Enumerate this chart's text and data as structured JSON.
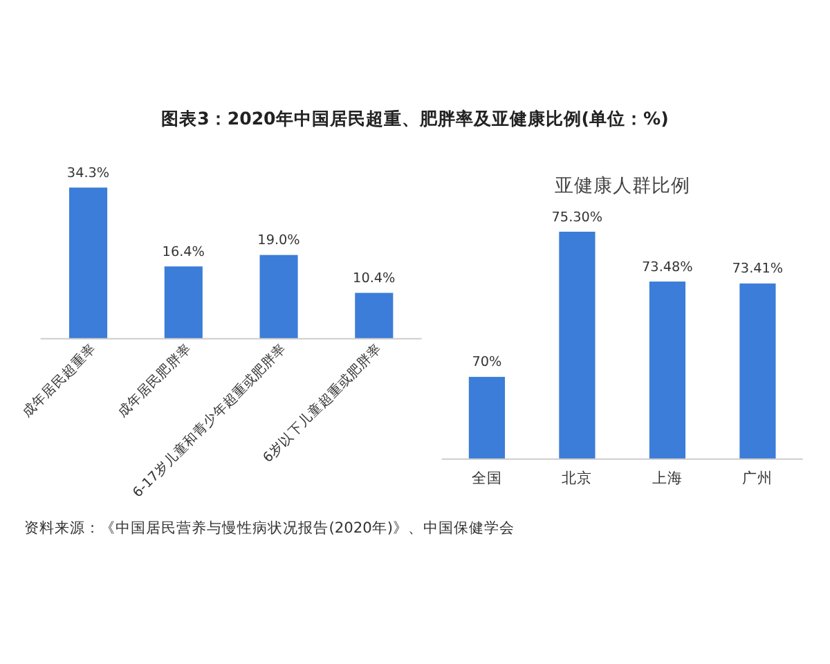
{
  "chart_data": [
    {
      "type": "bar",
      "title": "图表3：2020年中国居民超重、肥胖率及亚健康比例(单位：%)",
      "categories": [
        "成年居民超重率",
        "成年居民肥胖率",
        "6-17岁儿童和青少年超重或肥胖率",
        "6岁以下儿童超重或肥胖率"
      ],
      "values": [
        34.3,
        16.4,
        19.0,
        10.4
      ],
      "value_labels": [
        "34.3%",
        "16.4%",
        "19.0%",
        "10.4%"
      ],
      "color": "#3b7dd8",
      "tick_labels": "x",
      "annotations": [
        "资料来源：《中国居民营养与慢性病状况报告(2020年)》、中国保健学会"
      ]
    },
    {
      "type": "bar",
      "title": "亚健康人群比例",
      "categories": [
        "全国",
        "北京",
        "上海",
        "广州"
      ],
      "values": [
        70,
        75.3,
        73.48,
        73.41
      ],
      "value_labels": [
        "70%",
        "75.30%",
        "73.48%",
        "73.41%"
      ],
      "color": "#3b7dd8",
      "ylim": [
        67,
        75.3
      ],
      "tick_labels": "x"
    }
  ]
}
